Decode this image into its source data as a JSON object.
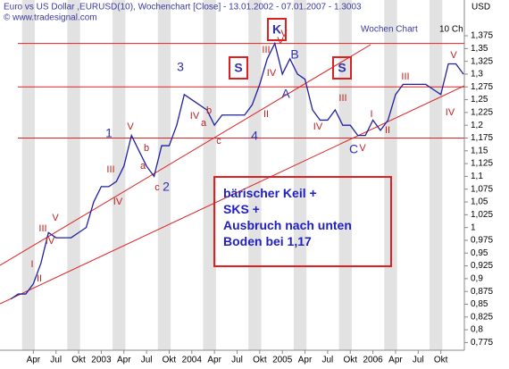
{
  "header": {
    "title": "Euro vs US Dollar ,EURUSD(10), Wochenchart [Close] - 13.01.2002 - 07.01.2007 - 1.3003",
    "source": "© www.tradesignal.com",
    "unit": "USD",
    "chart_name": "Wochen Chart",
    "corner": "10 Ch"
  },
  "chart_data": {
    "type": "line",
    "color": "#2020a0",
    "categories": [
      null,
      null,
      null,
      "Apr",
      null,
      null,
      "Jul",
      null,
      null,
      "Okt",
      null,
      null,
      "2003",
      null,
      null,
      "Apr",
      null,
      null,
      "Jul",
      null,
      null,
      "Okt",
      null,
      null,
      "2004",
      null,
      null,
      "Apr",
      null,
      null,
      "Jul",
      null,
      null,
      "Okt",
      null,
      null,
      "2005",
      null,
      null,
      "Apr",
      null,
      null,
      "Jul",
      null,
      null,
      "Okt",
      null,
      null,
      "2006",
      null,
      null,
      "Apr",
      null,
      null,
      "Jul",
      null,
      null,
      "Okt",
      null,
      null,
      null
    ],
    "values": [
      0.86,
      0.87,
      0.87,
      0.89,
      0.93,
      0.99,
      0.98,
      0.98,
      0.98,
      0.99,
      1.0,
      1.05,
      1.08,
      1.08,
      1.09,
      1.12,
      1.18,
      1.15,
      1.12,
      1.1,
      1.16,
      1.16,
      1.2,
      1.26,
      1.25,
      1.24,
      1.23,
      1.2,
      1.22,
      1.22,
      1.22,
      1.22,
      1.24,
      1.28,
      1.33,
      1.36,
      1.3,
      1.33,
      1.3,
      1.29,
      1.23,
      1.21,
      1.21,
      1.23,
      1.2,
      1.2,
      1.18,
      1.18,
      1.21,
      1.19,
      1.21,
      1.26,
      1.28,
      1.28,
      1.28,
      1.28,
      1.27,
      1.26,
      1.32,
      1.32,
      1.3
    ],
    "ylim": [
      0.76,
      1.41
    ],
    "yticks": [
      {
        "value": 0.775,
        "label": "0,775"
      },
      {
        "value": 0.8,
        "label": "0,8"
      },
      {
        "value": 0.825,
        "label": "0,825"
      },
      {
        "value": 0.85,
        "label": "0,85"
      },
      {
        "value": 0.875,
        "label": "0,875"
      },
      {
        "value": 0.9,
        "label": "0,9"
      },
      {
        "value": 0.925,
        "label": "0,925"
      },
      {
        "value": 0.95,
        "label": "0,95"
      },
      {
        "value": 0.975,
        "label": "0,975"
      },
      1,
      {
        "value": 1.025,
        "label": "1,025"
      },
      {
        "value": 1.05,
        "label": "1,05"
      },
      {
        "value": 1.075,
        "label": "1,075"
      },
      {
        "value": 1.1,
        "label": "1,1"
      },
      {
        "value": 1.125,
        "label": "1,125"
      },
      {
        "value": 1.15,
        "label": "1,15"
      },
      {
        "value": 1.175,
        "label": "1,175"
      },
      {
        "value": 1.2,
        "label": "1,2"
      },
      {
        "value": 1.225,
        "label": "1,225"
      },
      {
        "value": 1.25,
        "label": "1,25"
      },
      {
        "value": 1.275,
        "label": "1,275"
      },
      {
        "value": 1.3,
        "label": "1,3"
      },
      {
        "value": 1.325,
        "label": "1,325"
      },
      {
        "value": 1.35,
        "label": "1,35"
      },
      {
        "value": 1.375,
        "label": "1,375"
      }
    ],
    "hlines": [
      1.36,
      1.275,
      1.175
    ],
    "waves": [
      "1",
      "2",
      "3",
      "4",
      "A",
      "B",
      "C",
      "V",
      "I",
      "II",
      "III",
      "IV",
      "V",
      "III",
      "IV",
      "V",
      "a",
      "b",
      "c",
      "IV",
      "a",
      "b",
      "c",
      "II",
      "III",
      "IV",
      "V",
      "III",
      "IV",
      "V",
      "I",
      "II",
      "III",
      "IV",
      "V"
    ],
    "boxed_labels": [
      "K",
      "S",
      "S"
    ],
    "annotation": [
      "bärischer Keil +",
      "SKS +",
      "Ausbruch nach unten",
      "Boden bei 1,17"
    ]
  }
}
